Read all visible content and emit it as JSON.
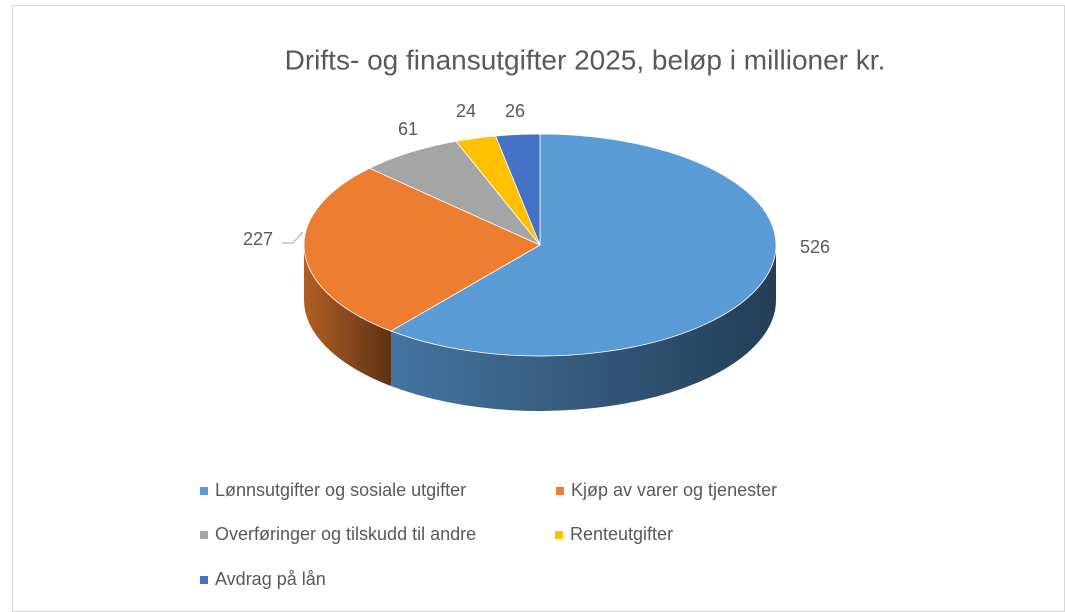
{
  "chart_data": {
    "type": "pie",
    "title": "Drifts- og finansutgifter 2025, beløp i millioner kr.",
    "categories": [
      "Lønnsutgifter og sosiale utgifter",
      "Kjøp av varer og tjenester",
      "Overføringer og tilskudd til andre",
      "Renteutgifter",
      "Avdrag på lån"
    ],
    "values": [
      526,
      227,
      61,
      24,
      26
    ],
    "colors": [
      "#5b9bd5",
      "#ed7d31",
      "#a5a5a5",
      "#ffc000",
      "#4472c4"
    ],
    "legend": "bottom"
  }
}
